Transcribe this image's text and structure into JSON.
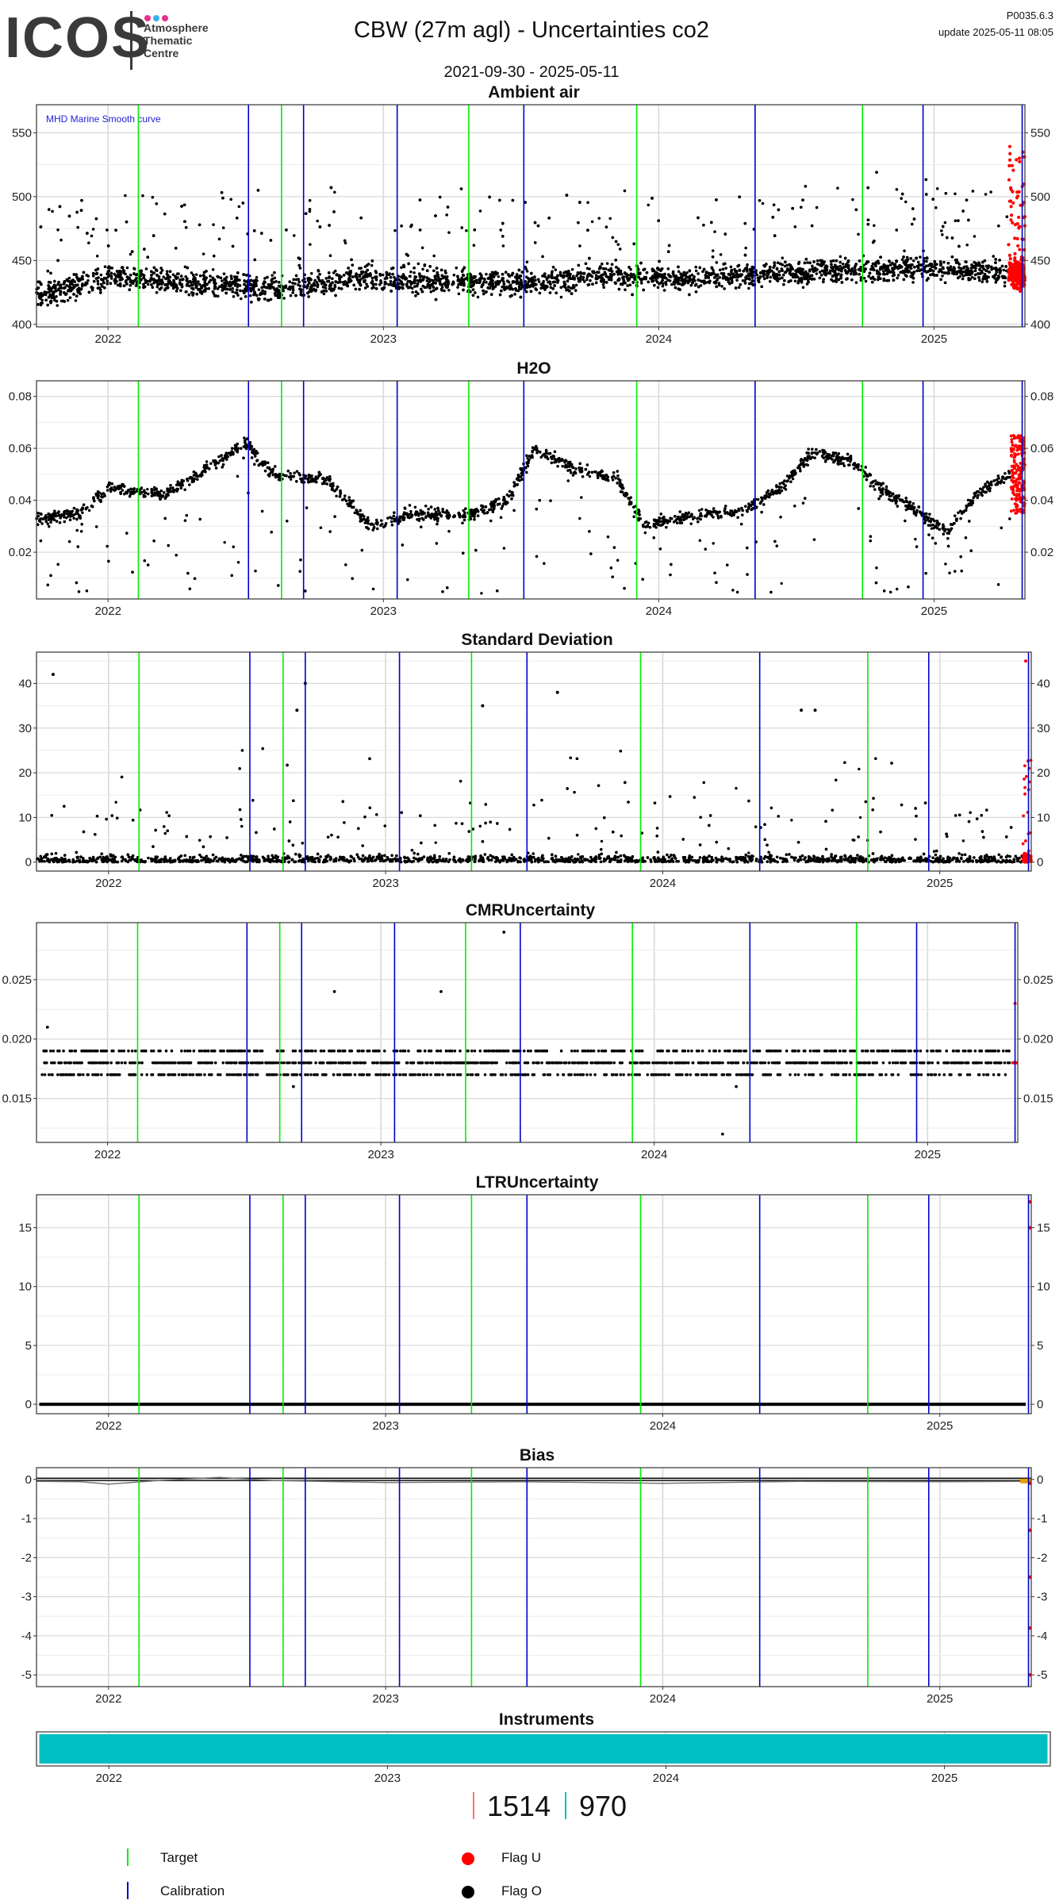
{
  "header": {
    "logo_text": "ICOS",
    "logo_subtitle": [
      "Atmosphere",
      "Thematic",
      "Centre"
    ],
    "title": "CBW  (27m agl) - Uncertainties co2",
    "date_range": "2021-09-30 - 2025-05-11",
    "version": "P0035.6.3",
    "update": "update  2025-05-11 08:05"
  },
  "colors": {
    "target": "#00ee00",
    "calibration": "#0000cc",
    "flag_u": "#ff0000",
    "flag_o": "#000000",
    "instrument": "#00bfc4",
    "bias_band": "#e69f00",
    "grid": "#d9d9d9",
    "count_1": "#f8766d",
    "count_2": "#00bfc4"
  },
  "counts": [
    {
      "value": "1514",
      "color": "count_1"
    },
    {
      "value": "970",
      "color": "count_2"
    }
  ],
  "legend": [
    {
      "label": "Target",
      "kind": "line",
      "color": "target"
    },
    {
      "label": "Calibration",
      "kind": "line",
      "color": "calibration"
    },
    {
      "label": "Flag U",
      "kind": "dot",
      "color": "flag_u"
    },
    {
      "label": "Flag O",
      "kind": "dot",
      "color": "flag_o"
    }
  ],
  "chart_data": [
    {
      "type": "scatter",
      "title": "Ambient air",
      "annotation": "MHD Marine Smooth curve",
      "xlim": [
        2021.74,
        2025.33
      ],
      "ylim": [
        398,
        572
      ],
      "yticks": [
        400,
        450,
        500,
        550
      ],
      "ytick_labels": [
        "400",
        "450",
        "500",
        "550"
      ],
      "xticks": [
        2022,
        2023,
        2024,
        2025
      ],
      "xtick_labels": [
        "2022",
        "2023",
        "2024",
        "2025"
      ],
      "target_lines": [
        2022.11,
        2022.63,
        2023.31,
        2023.92,
        2024.74
      ],
      "calibration_lines": [
        2022.51,
        2022.71,
        2023.05,
        2023.51,
        2024.35,
        2024.96,
        2025.32
      ],
      "series": [
        {
          "values": [
            [
              2021.8,
              425
            ],
            [
              2022.0,
              438
            ],
            [
              2022.3,
              432
            ],
            [
              2022.6,
              428
            ],
            [
              2022.9,
              436
            ],
            [
              2023.2,
              434
            ],
            [
              2023.5,
              432
            ],
            [
              2023.8,
              438
            ],
            [
              2024.1,
              436
            ],
            [
              2024.4,
              440
            ],
            [
              2024.7,
              442
            ],
            [
              2025.0,
              444
            ],
            [
              2025.2,
              441
            ]
          ]
        }
      ],
      "flagged": {
        "x_range": [
          2025.27,
          2025.33
        ],
        "y_range": [
          420,
          555
        ]
      },
      "grid": true
    },
    {
      "type": "scatter",
      "title": "H2O",
      "xlim": [
        2021.74,
        2025.33
      ],
      "ylim": [
        0.002,
        0.086
      ],
      "yticks": [
        0.02,
        0.04,
        0.06,
        0.08
      ],
      "ytick_labels": [
        "0.02",
        "0.04",
        "0.06",
        "0.08"
      ],
      "xticks": [
        2022,
        2023,
        2024,
        2025
      ],
      "xtick_labels": [
        "2022",
        "2023",
        "2024",
        "2025"
      ],
      "target_lines": [
        2022.11,
        2022.63,
        2023.31,
        2023.92,
        2024.74
      ],
      "calibration_lines": [
        2022.51,
        2022.71,
        2023.05,
        2023.51,
        2024.35,
        2024.96,
        2025.32
      ],
      "series": [
        {
          "values": [
            [
              2021.75,
              0.033
            ],
            [
              2021.9,
              0.035
            ],
            [
              2022.0,
              0.045
            ],
            [
              2022.2,
              0.042
            ],
            [
              2022.4,
              0.055
            ],
            [
              2022.5,
              0.062
            ],
            [
              2022.6,
              0.05
            ],
            [
              2022.8,
              0.048
            ],
            [
              2022.95,
              0.03
            ],
            [
              2023.1,
              0.035
            ],
            [
              2023.3,
              0.034
            ],
            [
              2023.45,
              0.04
            ],
            [
              2023.55,
              0.06
            ],
            [
              2023.7,
              0.052
            ],
            [
              2023.85,
              0.048
            ],
            [
              2023.95,
              0.03
            ],
            [
              2024.1,
              0.034
            ],
            [
              2024.3,
              0.036
            ],
            [
              2024.45,
              0.045
            ],
            [
              2024.55,
              0.058
            ],
            [
              2024.7,
              0.055
            ],
            [
              2024.8,
              0.045
            ],
            [
              2024.95,
              0.035
            ],
            [
              2025.05,
              0.028
            ],
            [
              2025.15,
              0.042
            ],
            [
              2025.3,
              0.052
            ]
          ]
        }
      ],
      "flagged": {
        "x_range": [
          2025.28,
          2025.33
        ],
        "y_range": [
          0.035,
          0.065
        ]
      },
      "grid": true
    },
    {
      "type": "scatter",
      "title": "Standard Deviation",
      "xlim": [
        2021.74,
        2025.33
      ],
      "ylim": [
        -2,
        47
      ],
      "yticks": [
        0,
        10,
        20,
        30,
        40
      ],
      "ytick_labels": [
        "0",
        "10",
        "20",
        "30",
        "40"
      ],
      "xticks": [
        2022,
        2023,
        2024,
        2025
      ],
      "xtick_labels": [
        "2022",
        "2023",
        "2024",
        "2025"
      ],
      "target_lines": [
        2022.11,
        2022.63,
        2023.31,
        2023.92,
        2024.74
      ],
      "calibration_lines": [
        2022.51,
        2022.71,
        2023.05,
        2023.51,
        2024.35,
        2024.96,
        2025.32
      ],
      "series": [
        {
          "values": [
            [
              2021.8,
              1
            ],
            [
              2022.2,
              1
            ],
            [
              2022.6,
              2
            ],
            [
              2023.0,
              1
            ],
            [
              2023.5,
              2
            ],
            [
              2024.0,
              1
            ],
            [
              2024.5,
              2
            ],
            [
              2025.0,
              1
            ],
            [
              2025.3,
              1
            ]
          ]
        }
      ],
      "highlights": [
        [
          2021.8,
          42
        ],
        [
          2022.68,
          34
        ],
        [
          2022.71,
          40
        ],
        [
          2023.35,
          35
        ],
        [
          2023.62,
          38
        ],
        [
          2024.5,
          34
        ],
        [
          2024.55,
          34
        ]
      ],
      "flagged": {
        "x_range": [
          2025.3,
          2025.33
        ],
        "y_range": [
          0,
          45
        ]
      },
      "grid": true
    },
    {
      "type": "scatter",
      "title": "CMRUncertainty",
      "xlim": [
        2021.74,
        2025.33
      ],
      "ylim": [
        0.0113,
        0.0298
      ],
      "yticks": [
        0.015,
        0.02,
        0.025
      ],
      "ytick_labels": [
        "0.015",
        "0.020",
        "0.025"
      ],
      "xticks": [
        2022,
        2023,
        2024,
        2025
      ],
      "xtick_labels": [
        "2022",
        "2023",
        "2024",
        "2025"
      ],
      "target_lines": [
        2022.11,
        2022.63,
        2023.31,
        2023.92,
        2024.74
      ],
      "calibration_lines": [
        2022.51,
        2022.71,
        2023.05,
        2023.51,
        2024.35,
        2024.96,
        2025.32
      ],
      "levels": [
        0.017,
        0.018,
        0.019
      ],
      "highlights": [
        [
          2021.78,
          0.021
        ],
        [
          2022.83,
          0.024
        ],
        [
          2023.22,
          0.024
        ],
        [
          2023.45,
          0.029
        ],
        [
          2024.25,
          0.012
        ],
        [
          2022.68,
          0.016
        ],
        [
          2024.3,
          0.016
        ]
      ],
      "flagged": {
        "x_range": [
          2025.31,
          2025.33
        ],
        "y_range": [
          0.017,
          0.023
        ]
      },
      "grid": true
    },
    {
      "type": "scatter",
      "title": "LTRUncertainty",
      "xlim": [
        2021.74,
        2025.33
      ],
      "ylim": [
        -0.8,
        17.8
      ],
      "yticks": [
        0,
        5,
        10,
        15
      ],
      "ytick_labels": [
        "0",
        "5",
        "10",
        "15"
      ],
      "xticks": [
        2022,
        2023,
        2024,
        2025
      ],
      "xtick_labels": [
        "2022",
        "2023",
        "2024",
        "2025"
      ],
      "target_lines": [
        2022.11,
        2022.63,
        2023.31,
        2023.92,
        2024.74
      ],
      "calibration_lines": [
        2022.51,
        2022.71,
        2023.05,
        2023.51,
        2024.35,
        2024.96,
        2025.32
      ],
      "baseline": 0,
      "flagged_points": [
        [
          2025.325,
          17.2
        ],
        [
          2025.325,
          15
        ]
      ],
      "grid": true
    },
    {
      "type": "line",
      "title": "Bias",
      "xlim": [
        2021.74,
        2025.33
      ],
      "ylim": [
        -5.3,
        0.3
      ],
      "yticks": [
        -5,
        -4,
        -3,
        -2,
        -1,
        0
      ],
      "ytick_labels": [
        "-5",
        "-4",
        "-3",
        "-2",
        "-1",
        "0"
      ],
      "xticks": [
        2022,
        2023,
        2024,
        2025
      ],
      "xtick_labels": [
        "2022",
        "2023",
        "2024",
        "2025"
      ],
      "target_lines": [
        2022.11,
        2022.63,
        2023.31,
        2023.92,
        2024.74
      ],
      "calibration_lines": [
        2022.51,
        2022.71,
        2023.05,
        2023.51,
        2024.35,
        2024.96,
        2025.32
      ],
      "series": [
        {
          "values": [
            [
              2021.74,
              -0.05
            ],
            [
              2021.9,
              -0.06
            ],
            [
              2022.0,
              -0.12
            ],
            [
              2022.2,
              -0.02
            ],
            [
              2022.4,
              0.05
            ],
            [
              2022.6,
              -0.03
            ],
            [
              2023.0,
              -0.08
            ],
            [
              2023.5,
              -0.06
            ],
            [
              2024.0,
              -0.1
            ],
            [
              2024.5,
              -0.05
            ],
            [
              2025.0,
              -0.06
            ],
            [
              2025.3,
              -0.05
            ]
          ]
        }
      ],
      "flagged_points": [
        [
          2025.325,
          -0.1
        ],
        [
          2025.325,
          -1.3
        ],
        [
          2025.325,
          -2.5
        ],
        [
          2025.325,
          -3.8
        ],
        [
          2025.325,
          -5
        ]
      ],
      "grid": true
    },
    {
      "type": "bar",
      "title": "Instruments",
      "xlim": [
        2021.74,
        2025.38
      ],
      "xticks": [
        2022,
        2023,
        2024,
        2025
      ],
      "xtick_labels": [
        "2022",
        "2023",
        "2024",
        "2025"
      ],
      "span": [
        2021.75,
        2025.37
      ]
    }
  ]
}
